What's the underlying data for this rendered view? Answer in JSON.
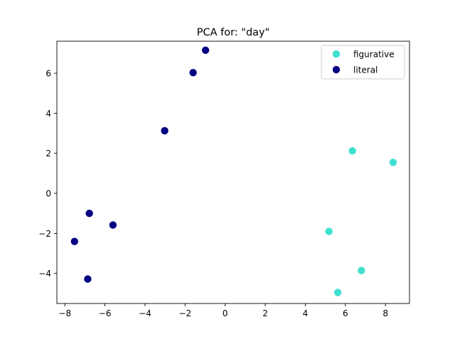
{
  "chart_data": {
    "type": "scatter",
    "title": "PCA for: \"day\"",
    "xlabel": "",
    "ylabel": "",
    "xlim": [
      -8.4,
      9.2
    ],
    "ylim": [
      -5.5,
      7.6
    ],
    "x_ticks": [
      -8,
      -6,
      -4,
      -2,
      0,
      2,
      4,
      6,
      8
    ],
    "y_ticks": [
      -4,
      -2,
      0,
      2,
      4,
      6
    ],
    "x_tick_labels": [
      "−8",
      "−6",
      "−4",
      "−2",
      "0",
      "2",
      "4",
      "6",
      "8"
    ],
    "y_tick_labels": [
      "−4",
      "−2",
      "0",
      "2",
      "4",
      "6"
    ],
    "grid": false,
    "legend_position": "top-right",
    "series": [
      {
        "name": "figurative",
        "color": "#40e0d0",
        "points": [
          {
            "x": 6.35,
            "y": 2.12
          },
          {
            "x": 8.38,
            "y": 1.55
          },
          {
            "x": 5.18,
            "y": -1.9
          },
          {
            "x": 6.8,
            "y": -3.85
          },
          {
            "x": 5.62,
            "y": -4.95
          }
        ]
      },
      {
        "name": "literal",
        "color": "#000080",
        "points": [
          {
            "x": -0.98,
            "y": 7.15
          },
          {
            "x": -1.6,
            "y": 6.03
          },
          {
            "x": -3.02,
            "y": 3.13
          },
          {
            "x": -6.78,
            "y": -1.0
          },
          {
            "x": -5.6,
            "y": -1.58
          },
          {
            "x": -7.52,
            "y": -2.4
          },
          {
            "x": -6.86,
            "y": -4.28
          }
        ]
      }
    ]
  }
}
